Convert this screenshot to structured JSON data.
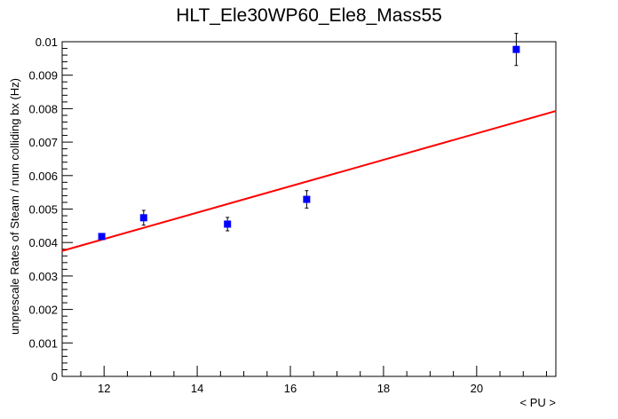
{
  "chart_data": {
    "type": "scatter",
    "title": "HLT_Ele30WP60_Ele8_Mass55",
    "xlabel": "< PU >",
    "ylabel": "unprescale Rates of Steam / num colliding bx (Hz)",
    "xlim": [
      11.1,
      21.7
    ],
    "ylim": [
      0,
      0.01
    ],
    "x_ticks": [
      12,
      14,
      16,
      18,
      20
    ],
    "y_ticks": [
      0,
      0.001,
      0.002,
      0.003,
      0.004,
      0.005,
      0.006,
      0.007,
      0.008,
      0.009,
      0.01
    ],
    "x_tick_labels": [
      "12",
      "14",
      "16",
      "18",
      "20"
    ],
    "y_tick_labels": [
      "0",
      "0.001",
      "0.002",
      "0.003",
      "0.004",
      "0.005",
      "0.006",
      "0.007",
      "0.008",
      "0.009",
      "0.01"
    ],
    "grid": false,
    "series": [
      {
        "points": [
          {
            "x": 11.95,
            "y": 0.00418,
            "err": 7e-05
          },
          {
            "x": 12.85,
            "y": 0.00474,
            "err": 0.00022
          },
          {
            "x": 14.65,
            "y": 0.00455,
            "err": 0.0002
          },
          {
            "x": 16.35,
            "y": 0.00529,
            "err": 0.00026
          },
          {
            "x": 20.85,
            "y": 0.00977,
            "err": 0.00048
          }
        ],
        "color": "#0000ff"
      }
    ],
    "fit": {
      "type": "linear",
      "x": [
        11.1,
        21.7
      ],
      "y": [
        0.00375,
        0.00793
      ],
      "color": "#ff0000"
    }
  }
}
